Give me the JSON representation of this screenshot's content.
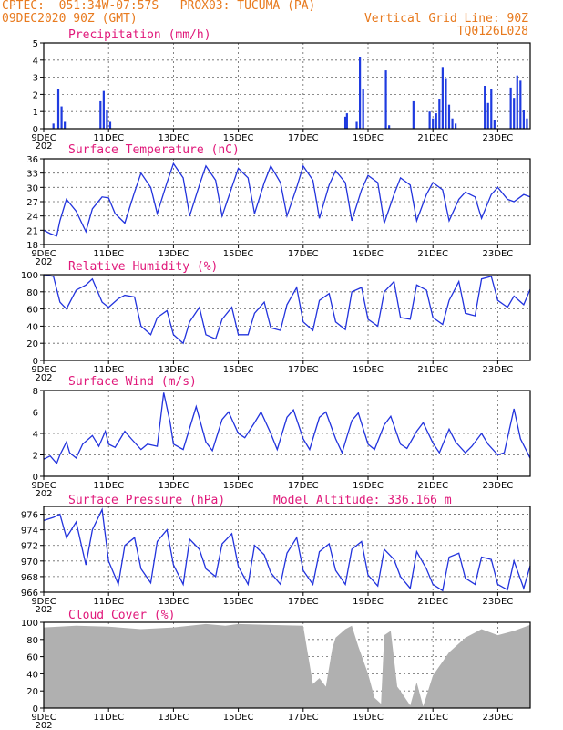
{
  "header": {
    "line1_left": "CPTEC:  051:34W-07:57S   PROX03: TUCUMA (PA)",
    "line2_left": "09DEC2020 90Z (GMT)",
    "line2_right": "Vertical Grid Line: 90Z",
    "line3_right": "TQ0126L028"
  },
  "colors": {
    "series": "#2233dd",
    "bars": "#1f3be0",
    "cloud": "#b0b0b0",
    "title": "#e0187a",
    "header": "#e87a1e"
  },
  "x_ticks": [
    "9DEC",
    "11DEC",
    "13DEC",
    "15DEC",
    "17DEC",
    "19DEC",
    "21DEC",
    "23DEC"
  ],
  "x_tick_days": [
    9,
    11,
    13,
    15,
    17,
    19,
    21,
    23
  ],
  "x_sublabel": "202",
  "x_range_days": [
    9,
    24
  ],
  "chart_data": [
    {
      "type": "bar",
      "title": "Precipitation (mm/h)",
      "ylim": [
        0,
        5
      ],
      "yticks": [
        0,
        1,
        2,
        3,
        4,
        5
      ],
      "x_days": [
        9.3,
        9.45,
        9.55,
        9.65,
        10.75,
        10.85,
        10.95,
        11.05,
        18.3,
        18.35,
        18.65,
        18.75,
        18.85,
        19.55,
        19.65,
        20.4,
        20.9,
        21.0,
        21.1,
        21.2,
        21.3,
        21.4,
        21.5,
        21.6,
        21.7,
        22.6,
        22.7,
        22.8,
        22.9,
        23.4,
        23.5,
        23.6,
        23.7,
        23.8,
        23.9
      ],
      "values": [
        0.3,
        2.3,
        1.3,
        0.4,
        1.6,
        2.2,
        1.1,
        0.4,
        0.7,
        0.9,
        0.4,
        4.2,
        2.3,
        3.4,
        0.2,
        1.6,
        1.0,
        0.6,
        0.9,
        1.7,
        3.6,
        2.9,
        1.4,
        0.6,
        0.3,
        2.5,
        1.5,
        2.3,
        0.5,
        2.4,
        1.8,
        3.1,
        2.8,
        1.1,
        0.6
      ]
    },
    {
      "type": "line",
      "title": "Surface Temperature (nC)",
      "ylim": [
        18,
        36
      ],
      "yticks": [
        18,
        21,
        24,
        27,
        30,
        33,
        36
      ],
      "x_days": [
        9.0,
        9.2,
        9.4,
        9.5,
        9.7,
        10.0,
        10.3,
        10.5,
        10.8,
        11.0,
        11.2,
        11.5,
        11.8,
        12.0,
        12.3,
        12.5,
        12.8,
        13.0,
        13.3,
        13.5,
        13.8,
        14.0,
        14.3,
        14.5,
        14.8,
        15.0,
        15.3,
        15.5,
        15.8,
        16.0,
        16.3,
        16.5,
        16.8,
        17.0,
        17.3,
        17.5,
        17.8,
        18.0,
        18.3,
        18.5,
        18.8,
        19.0,
        19.3,
        19.5,
        19.8,
        20.0,
        20.3,
        20.5,
        20.8,
        21.0,
        21.3,
        21.5,
        21.8,
        22.0,
        22.3,
        22.5,
        22.8,
        23.0,
        23.3,
        23.5,
        23.8,
        24.0
      ],
      "values": [
        21.0,
        20.3,
        19.8,
        23.0,
        27.5,
        25.0,
        20.7,
        25.5,
        28.0,
        27.8,
        24.5,
        22.5,
        29.0,
        33.0,
        30.0,
        24.5,
        31.0,
        35.0,
        32.0,
        24.0,
        30.5,
        34.5,
        31.5,
        24.0,
        30.0,
        34.0,
        32.0,
        24.5,
        31.0,
        34.5,
        31.0,
        24.0,
        30.0,
        34.5,
        31.5,
        23.5,
        30.5,
        33.5,
        31.0,
        23.0,
        29.5,
        32.5,
        31.0,
        22.5,
        28.5,
        32.0,
        30.5,
        23.0,
        28.5,
        31.0,
        29.5,
        23.0,
        27.5,
        29.0,
        28.0,
        23.5,
        28.5,
        30.0,
        27.5,
        27.0,
        28.5,
        28.0
      ]
    },
    {
      "type": "line",
      "title": "Relative Humidity (%)",
      "ylim": [
        0,
        100
      ],
      "yticks": [
        0,
        20,
        40,
        60,
        80,
        100
      ],
      "x_days": [
        9.0,
        9.3,
        9.5,
        9.7,
        10.0,
        10.3,
        10.5,
        10.8,
        11.0,
        11.3,
        11.5,
        11.8,
        12.0,
        12.3,
        12.5,
        12.8,
        13.0,
        13.3,
        13.5,
        13.8,
        14.0,
        14.3,
        14.5,
        14.8,
        15.0,
        15.3,
        15.5,
        15.8,
        16.0,
        16.3,
        16.5,
        16.8,
        17.0,
        17.3,
        17.5,
        17.8,
        18.0,
        18.3,
        18.5,
        18.8,
        19.0,
        19.3,
        19.5,
        19.8,
        20.0,
        20.3,
        20.5,
        20.8,
        21.0,
        21.3,
        21.5,
        21.8,
        22.0,
        22.3,
        22.5,
        22.8,
        23.0,
        23.3,
        23.5,
        23.8,
        24.0
      ],
      "values": [
        100,
        98,
        68,
        60,
        82,
        88,
        95,
        68,
        62,
        72,
        76,
        74,
        40,
        30,
        50,
        58,
        30,
        20,
        45,
        62,
        30,
        25,
        48,
        62,
        30,
        30,
        55,
        68,
        38,
        35,
        65,
        85,
        45,
        35,
        70,
        78,
        45,
        36,
        80,
        85,
        48,
        40,
        80,
        92,
        50,
        48,
        88,
        82,
        50,
        42,
        70,
        92,
        55,
        52,
        95,
        98,
        70,
        62,
        75,
        65,
        83
      ]
    },
    {
      "type": "line",
      "title": "Surface Wind (m/s)",
      "ylim": [
        0,
        8
      ],
      "yticks": [
        0,
        2,
        4,
        6,
        8
      ],
      "x_days": [
        9.0,
        9.2,
        9.4,
        9.5,
        9.7,
        9.8,
        10.0,
        10.2,
        10.5,
        10.7,
        10.9,
        11.0,
        11.2,
        11.5,
        11.7,
        12.0,
        12.2,
        12.5,
        12.7,
        12.9,
        13.0,
        13.3,
        13.5,
        13.7,
        14.0,
        14.2,
        14.5,
        14.7,
        15.0,
        15.2,
        15.5,
        15.7,
        16.0,
        16.2,
        16.5,
        16.7,
        17.0,
        17.2,
        17.5,
        17.7,
        18.0,
        18.2,
        18.5,
        18.7,
        19.0,
        19.2,
        19.5,
        19.7,
        20.0,
        20.2,
        20.5,
        20.7,
        21.0,
        21.2,
        21.5,
        21.7,
        22.0,
        22.2,
        22.5,
        22.7,
        23.0,
        23.2,
        23.5,
        23.7,
        24.0
      ],
      "values": [
        1.6,
        1.9,
        1.2,
        2.0,
        3.2,
        2.2,
        1.7,
        3.0,
        3.8,
        2.8,
        4.2,
        3.0,
        2.7,
        4.2,
        3.5,
        2.5,
        3.0,
        2.8,
        7.8,
        5.0,
        3.0,
        2.5,
        4.5,
        6.5,
        3.2,
        2.4,
        5.3,
        6.0,
        4.0,
        3.6,
        5.0,
        6.0,
        4.0,
        2.5,
        5.5,
        6.2,
        3.5,
        2.5,
        5.5,
        6.0,
        3.5,
        2.2,
        5.2,
        5.9,
        3.0,
        2.5,
        4.8,
        5.6,
        3.0,
        2.6,
        4.2,
        5.0,
        3.1,
        2.2,
        4.4,
        3.2,
        2.2,
        2.8,
        4.0,
        3.0,
        2.0,
        2.2,
        6.3,
        3.5,
        1.7
      ]
    },
    {
      "type": "line",
      "title": "Surface Pressure (hPa)",
      "annotation": "Model Altitude: 336.166 m",
      "ylim": [
        966,
        977
      ],
      "yticks": [
        966,
        968,
        970,
        972,
        974,
        976
      ],
      "x_days": [
        9.0,
        9.3,
        9.5,
        9.7,
        10.0,
        10.3,
        10.5,
        10.8,
        11.0,
        11.3,
        11.5,
        11.8,
        12.0,
        12.3,
        12.5,
        12.8,
        13.0,
        13.3,
        13.5,
        13.8,
        14.0,
        14.3,
        14.5,
        14.8,
        15.0,
        15.3,
        15.5,
        15.8,
        16.0,
        16.3,
        16.5,
        16.8,
        17.0,
        17.3,
        17.5,
        17.8,
        18.0,
        18.3,
        18.5,
        18.8,
        19.0,
        19.3,
        19.5,
        19.8,
        20.0,
        20.3,
        20.5,
        20.8,
        21.0,
        21.3,
        21.5,
        21.8,
        22.0,
        22.3,
        22.5,
        22.8,
        23.0,
        23.3,
        23.5,
        23.8,
        24.0
      ],
      "values": [
        975.2,
        975.6,
        976.0,
        973.0,
        975.0,
        969.5,
        974.0,
        976.6,
        970.0,
        967.0,
        972.0,
        973.0,
        969.0,
        967.2,
        972.5,
        974.0,
        969.5,
        967.0,
        972.8,
        971.5,
        969.0,
        968.0,
        972.2,
        973.5,
        969.3,
        967.0,
        972.0,
        970.8,
        968.5,
        967.0,
        971.0,
        973.0,
        968.8,
        967.0,
        971.2,
        972.2,
        968.8,
        967.0,
        971.5,
        972.5,
        968.2,
        966.8,
        971.5,
        970.2,
        968.0,
        966.5,
        971.2,
        969.0,
        967.0,
        966.2,
        970.5,
        971.0,
        967.8,
        967.0,
        970.5,
        970.2,
        967.0,
        966.3,
        970.0,
        966.5,
        969.4
      ]
    },
    {
      "type": "area",
      "title": "Cloud Cover (%)",
      "ylim": [
        0,
        100
      ],
      "yticks": [
        0,
        20,
        40,
        60,
        80,
        100
      ],
      "x_days": [
        9.0,
        10.0,
        11.0,
        12.0,
        13.0,
        14.0,
        14.6,
        15.0,
        16.0,
        17.0,
        17.3,
        17.5,
        17.7,
        17.9,
        18.0,
        18.3,
        18.5,
        18.7,
        19.0,
        19.2,
        19.4,
        19.5,
        19.7,
        19.9,
        20.0,
        20.3,
        20.5,
        20.7,
        21.0,
        21.5,
        22.0,
        22.5,
        23.0,
        23.5,
        24.0
      ],
      "values": [
        94,
        96,
        95,
        92,
        94,
        98,
        96,
        98,
        97,
        96,
        28,
        35,
        25,
        70,
        82,
        92,
        96,
        72,
        40,
        12,
        5,
        85,
        90,
        25,
        20,
        3,
        30,
        2,
        38,
        65,
        82,
        92,
        85,
        90,
        97
      ]
    }
  ]
}
